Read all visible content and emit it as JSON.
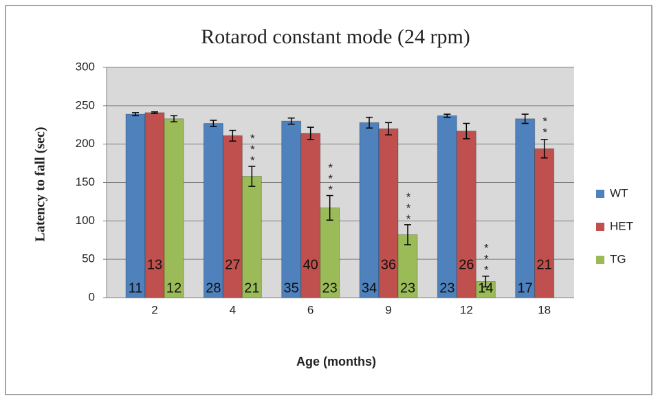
{
  "chart_data": {
    "type": "bar",
    "title": "Rotarod constant mode  (24 rpm)",
    "x_label": "Age (months)",
    "y_label": "Latency to fall (sec)",
    "categories": [
      "2",
      "4",
      "6",
      "9",
      "12",
      "18"
    ],
    "series": [
      {
        "name": "WT",
        "color": "#4f81bd",
        "values": [
          239,
          227,
          230,
          228,
          237,
          233
        ],
        "errors": [
          2,
          4,
          4,
          7,
          2,
          6
        ],
        "sample_sizes": [
          11,
          28,
          35,
          34,
          23,
          17
        ]
      },
      {
        "name": "HET",
        "color": "#c0504d",
        "values": [
          241,
          211,
          214,
          220,
          217,
          194
        ],
        "errors": [
          1,
          7,
          8,
          8,
          10,
          12
        ],
        "sample_sizes": [
          13,
          27,
          40,
          36,
          26,
          21
        ],
        "significance": [
          null,
          null,
          null,
          null,
          null,
          "**"
        ]
      },
      {
        "name": "TG",
        "color": "#9bbb59",
        "values": [
          233,
          158,
          117,
          82,
          21,
          null
        ],
        "errors": [
          4,
          13,
          16,
          13,
          7,
          null
        ],
        "sample_sizes": [
          12,
          21,
          23,
          23,
          14,
          null
        ],
        "significance": [
          null,
          "***",
          "***",
          "***",
          "***",
          null
        ]
      }
    ],
    "ylim": [
      0,
      300
    ],
    "yticks": [
      0,
      50,
      100,
      150,
      200,
      250,
      300
    ],
    "grid": true,
    "legend": "right"
  }
}
